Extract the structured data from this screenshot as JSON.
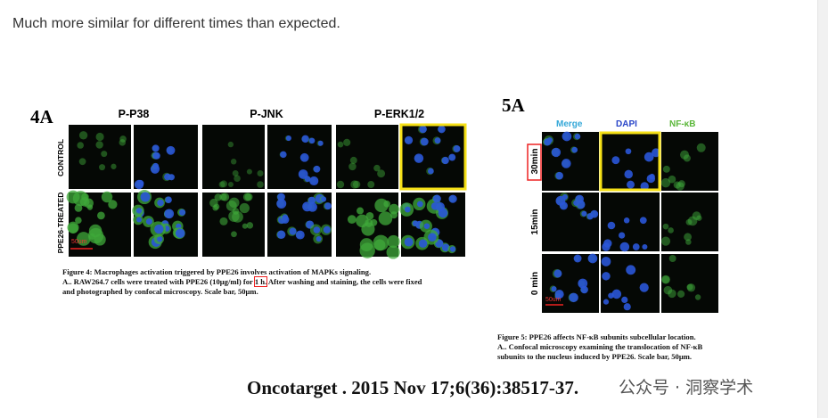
{
  "page": {
    "intro": "Much more similar for different times than expected.",
    "figure4": {
      "label": "4A",
      "columns": [
        "P-P38",
        "P-JNK",
        "P-ERK1/2"
      ],
      "rows": [
        "CONTROL",
        "PPE26-TREATED"
      ],
      "scale": "50um",
      "caption": {
        "line1": "Figure 4: Macrophages activation triggered by PPE26 involves activation of MAPKs signaling.",
        "line2a": "A.. RAW264.7 cells were treated with PPE26 (10μg/ml) for ",
        "line2b": "1 h.",
        "line2c": " After washing and staining, the cells were fixed",
        "line3": "and photographed by confocal microscopy. Scale bar, 50μm."
      }
    },
    "figure5": {
      "label": "5A",
      "columns": [
        "Merge",
        "DAPI",
        "NF-κB"
      ],
      "rows": [
        "30min",
        "15min",
        "0 min"
      ],
      "scale": "50um",
      "caption": {
        "line1": "Figure 5: PPE26 affects NF-κB subunits subcellular location.",
        "line2": "A.. Confocal microscopy examining the translocation of NF-κB",
        "line3": "subunits to the nucleus induced by PPE26. Scale bar, 50μm."
      }
    },
    "citation": "Oncotarget . 2015 Nov 17;6(36):38517-37.",
    "watermark": "公众号 · 洞察学术"
  }
}
